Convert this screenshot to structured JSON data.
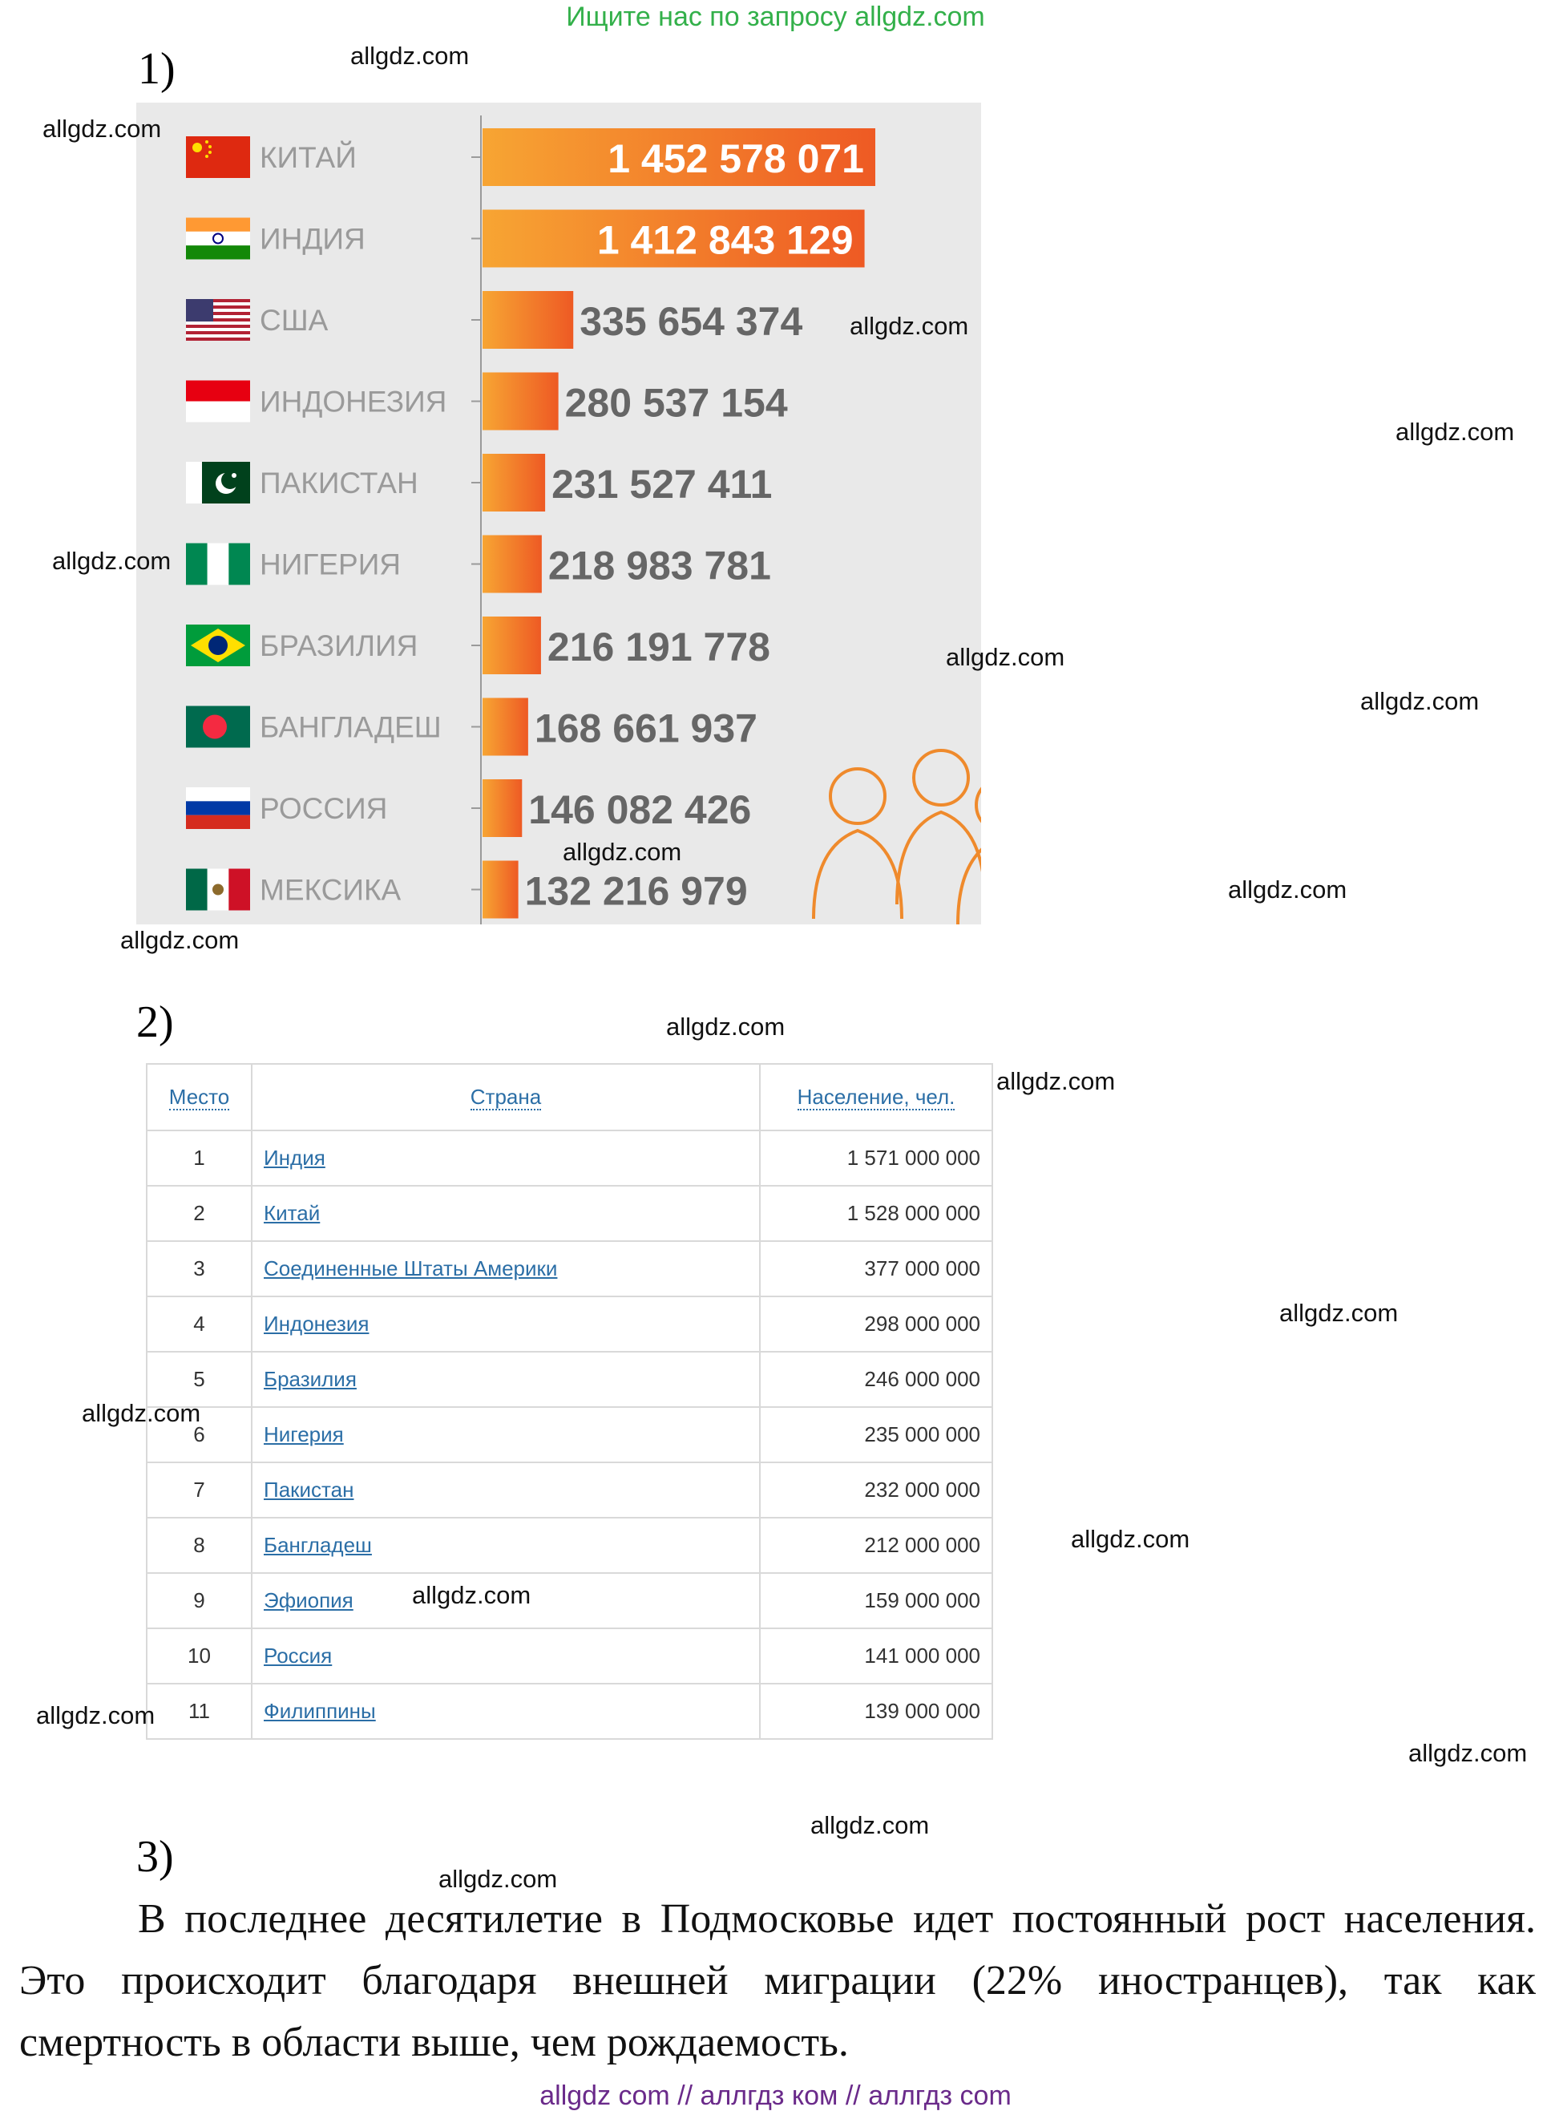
{
  "banner": "Ищите нас по запросу allgdz.com",
  "sections": {
    "s1": "1)",
    "s2": "2)",
    "s3": "3)"
  },
  "watermark": "allgdz.com",
  "chart_data": {
    "type": "bar",
    "orientation": "horizontal",
    "categories": [
      "КИТАЙ",
      "ИНДИЯ",
      "США",
      "ИНДОНЕЗИЯ",
      "ПАКИСТАН",
      "НИГЕРИЯ",
      "БРАЗИЛИЯ",
      "БАНГЛАДЕШ",
      "РОССИЯ",
      "МЕКСИКА"
    ],
    "values": [
      1452578071,
      1412843129,
      335654374,
      280537154,
      231527411,
      218983781,
      216191778,
      168661937,
      146082426,
      132216979
    ],
    "value_labels": [
      "1 452 578 071",
      "1 412 843 129",
      "335 654 374",
      "280 537 154",
      "231 527 411",
      "218 983 781",
      "216 191 778",
      "168 661 937",
      "146 082 426",
      "132 216 979"
    ],
    "flags": [
      "china",
      "india",
      "usa",
      "indonesia",
      "pakistan",
      "nigeria",
      "brazil",
      "bangladesh",
      "russia",
      "mexico"
    ],
    "bar_color_start": "#f7a533",
    "bar_color_end": "#ee5a24",
    "background": "#e9e9e9",
    "label_color": "#9a9a9a",
    "decoration": "people-icon"
  },
  "table": {
    "headers": [
      "Место",
      "Страна",
      "Население, чел."
    ],
    "rows": [
      [
        "1",
        "Индия",
        "1 571 000 000"
      ],
      [
        "2",
        "Китай",
        "1 528 000 000"
      ],
      [
        "3",
        "Соединенные Штаты Америки",
        "377 000 000"
      ],
      [
        "4",
        "Индонезия",
        "298 000 000"
      ],
      [
        "5",
        "Бразилия",
        "246 000 000"
      ],
      [
        "6",
        "Нигерия",
        "235 000 000"
      ],
      [
        "7",
        "Пакистан",
        "232 000 000"
      ],
      [
        "8",
        "Бангладеш",
        "212 000 000"
      ],
      [
        "9",
        "Эфиопия",
        "159 000 000"
      ],
      [
        "10",
        "Россия",
        "141 000 000"
      ],
      [
        "11",
        "Филиппины",
        "139 000 000"
      ]
    ]
  },
  "paragraph": "В последнее десятилетие в Подмосковье идет постоянный рост населения. Это происходит благодаря внешней миграции (22% иностранцев), так как смертность в области выше, чем рождаемость.",
  "footer": "allgdz com // аллгдз ком // аллгдз com"
}
